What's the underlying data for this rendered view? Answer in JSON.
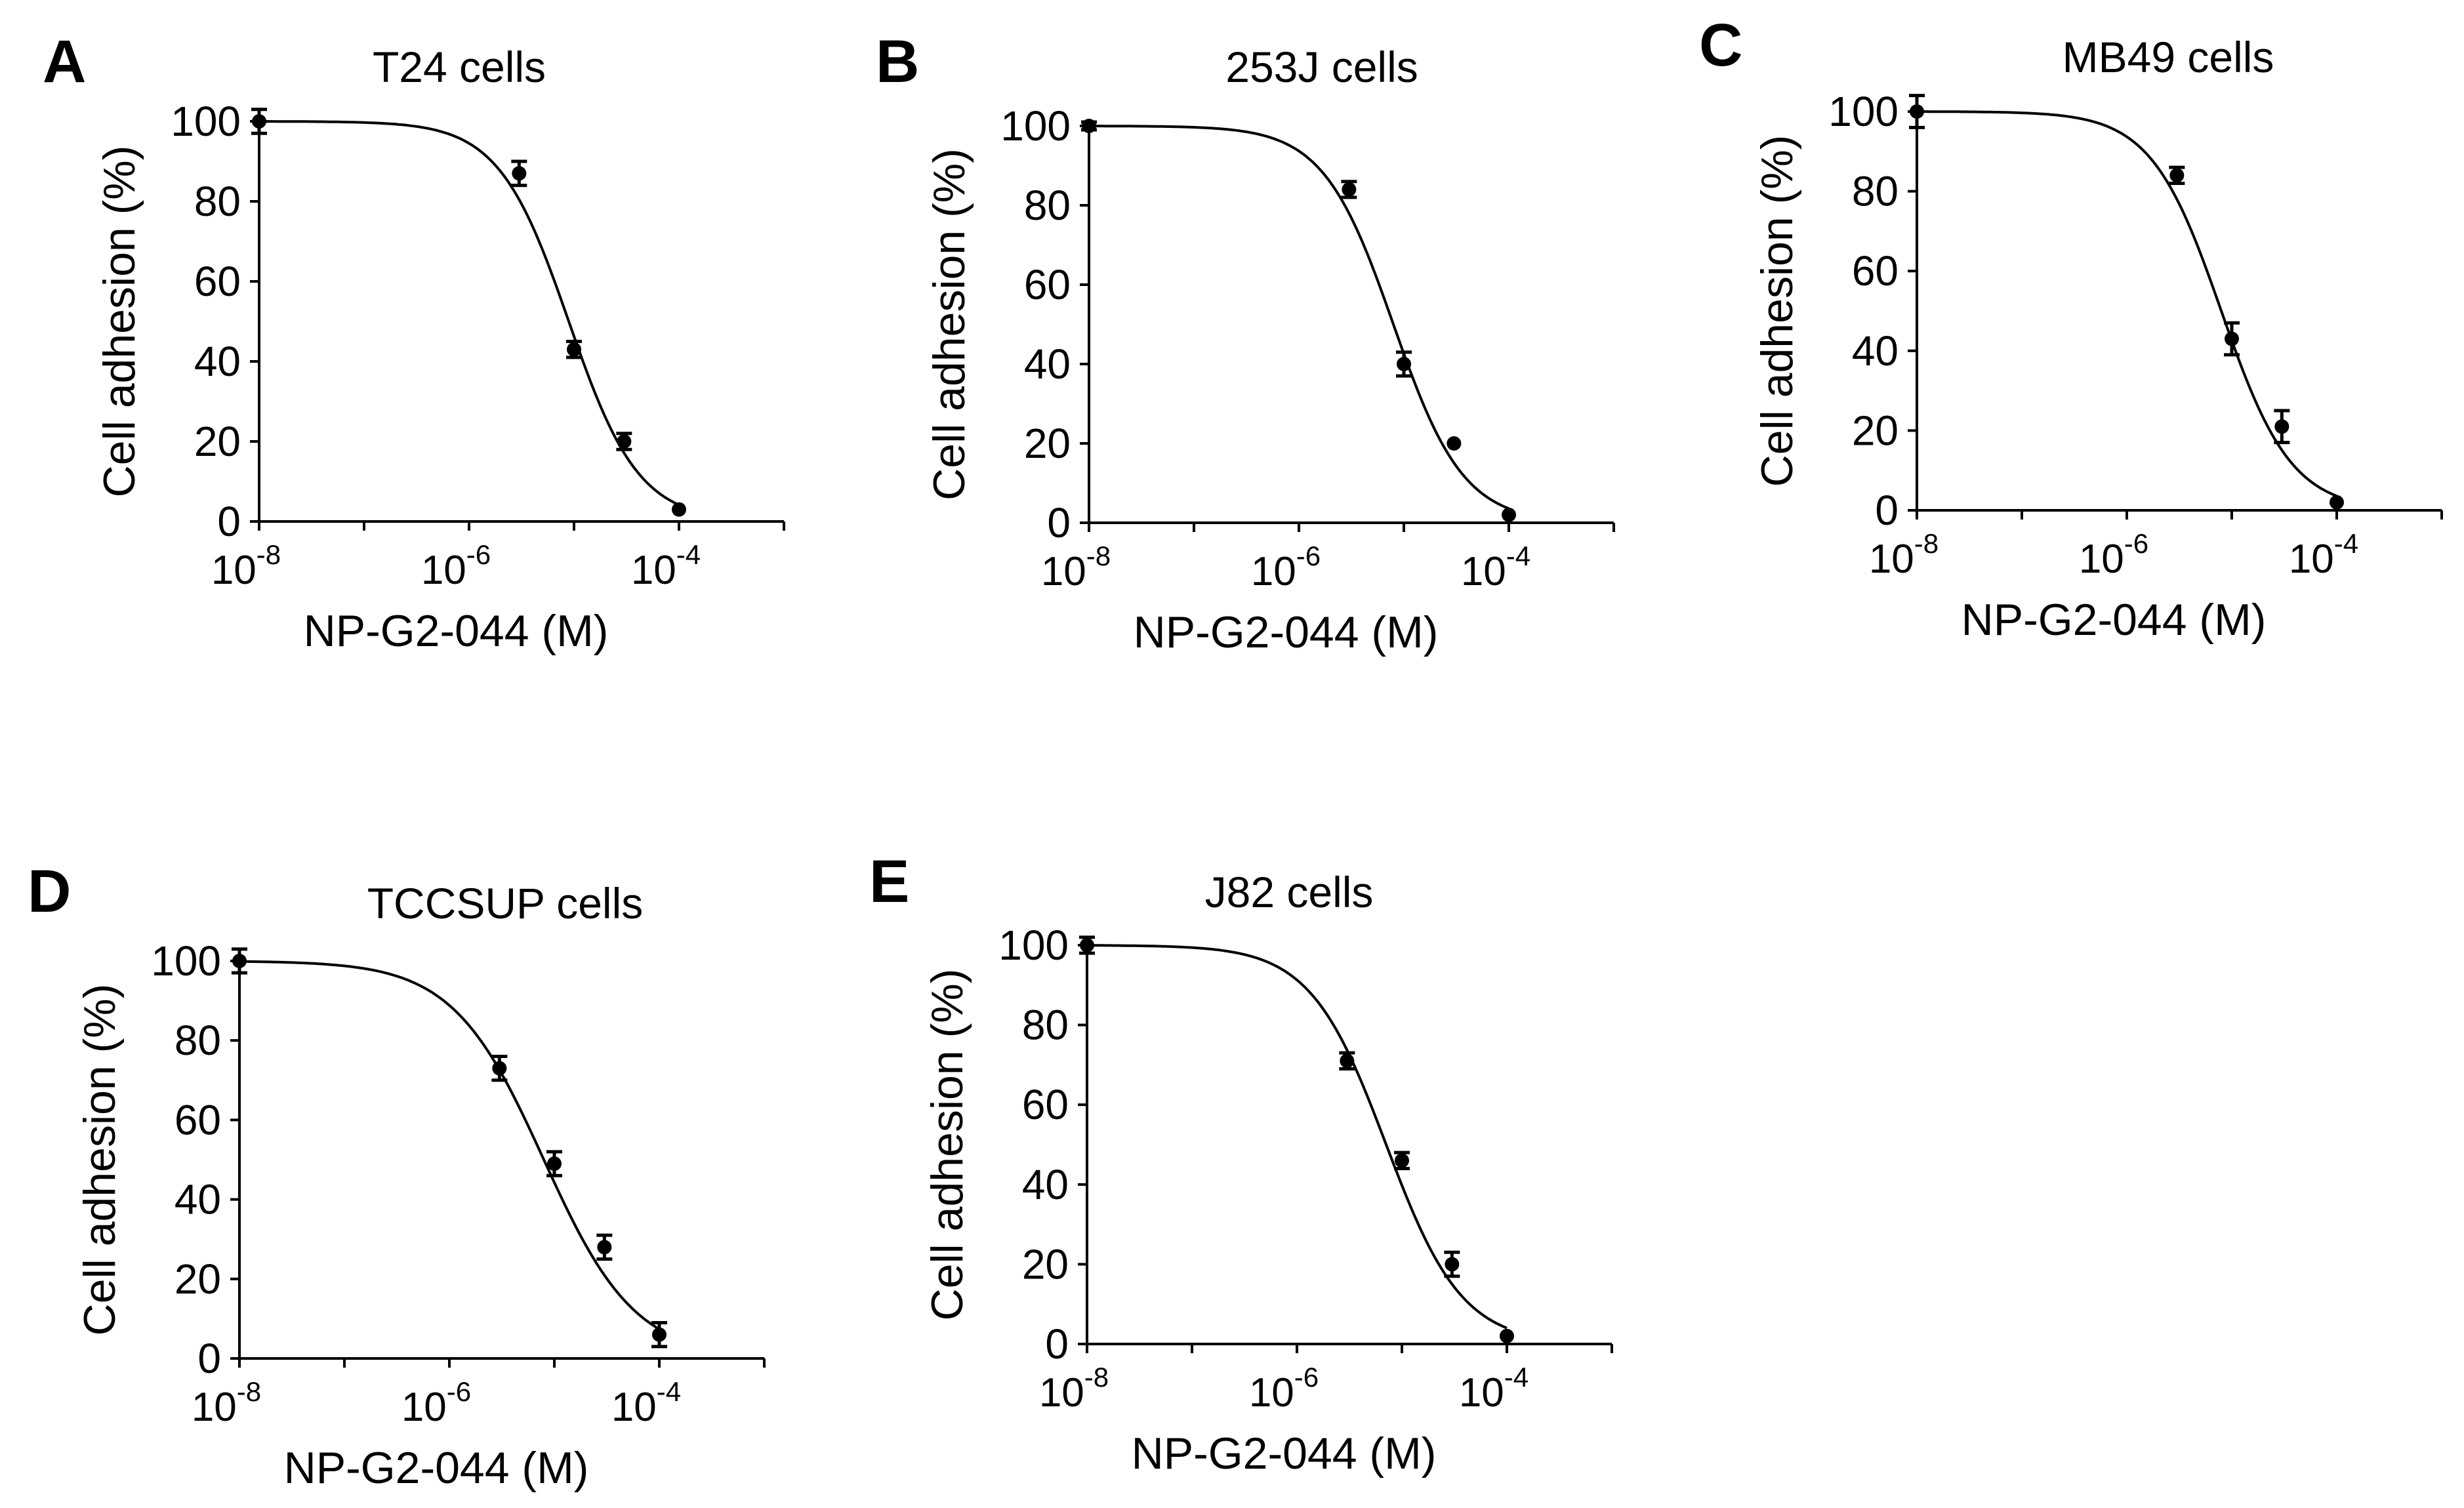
{
  "chart_data": [
    {
      "type": "scatter",
      "panel_label": "A",
      "title": "T24 cells",
      "xlabel": "NP-G2-044 (M)",
      "ylabel": "Cell adhesion (%)",
      "xscale": "log",
      "xlim_exp": [
        -8,
        -3
      ],
      "ylim": [
        0,
        100
      ],
      "x_ticks": [
        {
          "base": "10",
          "exp": "-8"
        },
        {
          "base": "10",
          "exp": "-6"
        },
        {
          "base": "10",
          "exp": "-4"
        }
      ],
      "y_ticks": [
        "0",
        "20",
        "40",
        "60",
        "80",
        "100"
      ],
      "x": [
        1e-08,
        3e-06,
        1e-05,
        3e-05,
        0.0001
      ],
      "values": [
        100,
        87,
        43,
        20,
        3
      ],
      "errors": [
        3,
        3,
        2,
        2,
        0
      ],
      "fit": {
        "model": "four-parameter logistic",
        "top": 100,
        "bottom": 0,
        "ic50_log": -5.05,
        "hill": 1.3
      }
    },
    {
      "type": "scatter",
      "panel_label": "B",
      "title": "253J cells",
      "xlabel": "NP-G2-044 (M)",
      "ylabel": "Cell adhesion (%)",
      "xscale": "log",
      "xlim_exp": [
        -8,
        -3
      ],
      "ylim": [
        0,
        100
      ],
      "x_ticks": [
        {
          "base": "10",
          "exp": "-8"
        },
        {
          "base": "10",
          "exp": "-6"
        },
        {
          "base": "10",
          "exp": "-4"
        }
      ],
      "y_ticks": [
        "0",
        "20",
        "40",
        "60",
        "80",
        "100"
      ],
      "x": [
        1e-08,
        3e-06,
        1e-05,
        3e-05,
        0.0001
      ],
      "values": [
        100,
        84,
        40,
        20,
        2
      ],
      "errors": [
        1,
        2,
        3,
        0,
        0
      ],
      "fit": {
        "model": "four-parameter logistic",
        "top": 100,
        "bottom": 0,
        "ic50_log": -5.1,
        "hill": 1.3
      }
    },
    {
      "type": "scatter",
      "panel_label": "C",
      "title": "MB49 cells",
      "xlabel": "NP-G2-044 (M)",
      "ylabel": "Cell adhesion (%)",
      "xscale": "log",
      "xlim_exp": [
        -8,
        -3
      ],
      "ylim": [
        0,
        100
      ],
      "x_ticks": [
        {
          "base": "10",
          "exp": "-8"
        },
        {
          "base": "10",
          "exp": "-6"
        },
        {
          "base": "10",
          "exp": "-4"
        }
      ],
      "y_ticks": [
        "0",
        "20",
        "40",
        "60",
        "80",
        "100"
      ],
      "x": [
        1e-08,
        3e-06,
        1e-05,
        3e-05,
        0.0001
      ],
      "values": [
        100,
        84,
        43,
        21,
        2
      ],
      "errors": [
        4,
        2,
        4,
        4,
        0
      ],
      "fit": {
        "model": "four-parameter logistic",
        "top": 100,
        "bottom": 0,
        "ic50_log": -5.1,
        "hill": 1.3
      }
    },
    {
      "type": "scatter",
      "panel_label": "D",
      "title": "TCCSUP cells",
      "xlabel": "NP-G2-044 (M)",
      "ylabel": "Cell adhesion (%)",
      "xscale": "log",
      "xlim_exp": [
        -8,
        -3
      ],
      "ylim": [
        0,
        100
      ],
      "x_ticks": [
        {
          "base": "10",
          "exp": "-8"
        },
        {
          "base": "10",
          "exp": "-6"
        },
        {
          "base": "10",
          "exp": "-4"
        }
      ],
      "y_ticks": [
        "0",
        "20",
        "40",
        "60",
        "80",
        "100"
      ],
      "x": [
        1e-08,
        3e-06,
        1e-05,
        3e-05,
        0.0001
      ],
      "values": [
        100,
        73,
        49,
        28,
        6
      ],
      "errors": [
        3,
        3,
        3,
        3,
        3
      ],
      "fit": {
        "model": "four-parameter logistic",
        "top": 100,
        "bottom": 0,
        "ic50_log": -5.1,
        "hill": 1.0
      }
    },
    {
      "type": "scatter",
      "panel_label": "E",
      "title": "J82 cells",
      "xlabel": "NP-G2-044 (M)",
      "ylabel": "Cell adhesion (%)",
      "xscale": "log",
      "xlim_exp": [
        -8,
        -3
      ],
      "ylim": [
        0,
        100
      ],
      "x_ticks": [
        {
          "base": "10",
          "exp": "-8"
        },
        {
          "base": "10",
          "exp": "-6"
        },
        {
          "base": "10",
          "exp": "-4"
        }
      ],
      "y_ticks": [
        "0",
        "20",
        "40",
        "60",
        "80",
        "100"
      ],
      "x": [
        1e-08,
        3e-06,
        1e-05,
        3e-05,
        0.0001
      ],
      "values": [
        100,
        71,
        46,
        20,
        2
      ],
      "errors": [
        2,
        2,
        2,
        3,
        0
      ],
      "fit": {
        "model": "four-parameter logistic",
        "top": 100,
        "bottom": 0,
        "ic50_log": -5.15,
        "hill": 1.2
      }
    }
  ]
}
